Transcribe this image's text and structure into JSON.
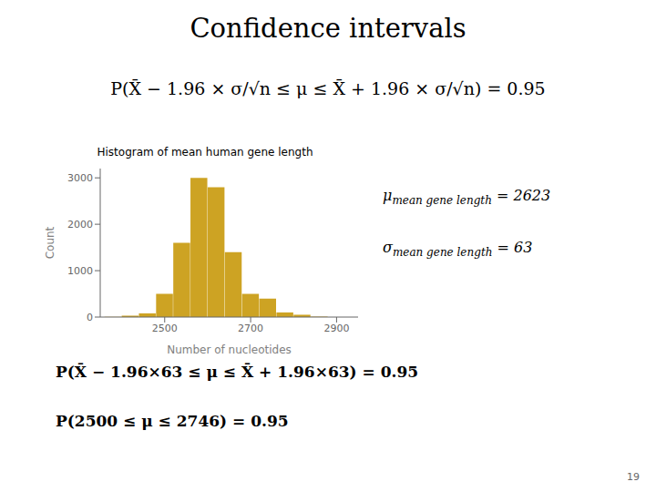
{
  "chart_data": {
    "type": "histogram",
    "title": "Histogram of mean human gene length",
    "xlabel": "Number of nucleotides",
    "ylabel": "Count",
    "color": "#CDA323",
    "bins": [
      2360,
      2400,
      2440,
      2480,
      2520,
      2560,
      2600,
      2640,
      2680,
      2720,
      2760,
      2800,
      2840,
      2880,
      2920
    ],
    "values": [
      5,
      30,
      80,
      500,
      1600,
      3000,
      2800,
      1400,
      500,
      400,
      100,
      50,
      10,
      0
    ],
    "xlim": [
      2350,
      2950
    ],
    "xticks": [
      2500,
      2700,
      2900
    ],
    "ylim": [
      0,
      3200
    ],
    "yticks": [
      0,
      1000,
      2000,
      3000
    ],
    "grid": false,
    "annotations": [
      "Confidence intervals",
      "P(X̄ − 1.96 × σ/√n ≤ μ ≤ X̄ + 1.96 × σ/√n) = 0.95",
      "μ mean gene length = 2623",
      "σ mean gene length = 63",
      "P(X̄ − 1.96×63 ≤ μ ≤ X̄ + 1.96×63) = 0.95",
      "P(2500 ≤ μ ≤ 2746) = 0.95",
      "19"
    ]
  }
}
